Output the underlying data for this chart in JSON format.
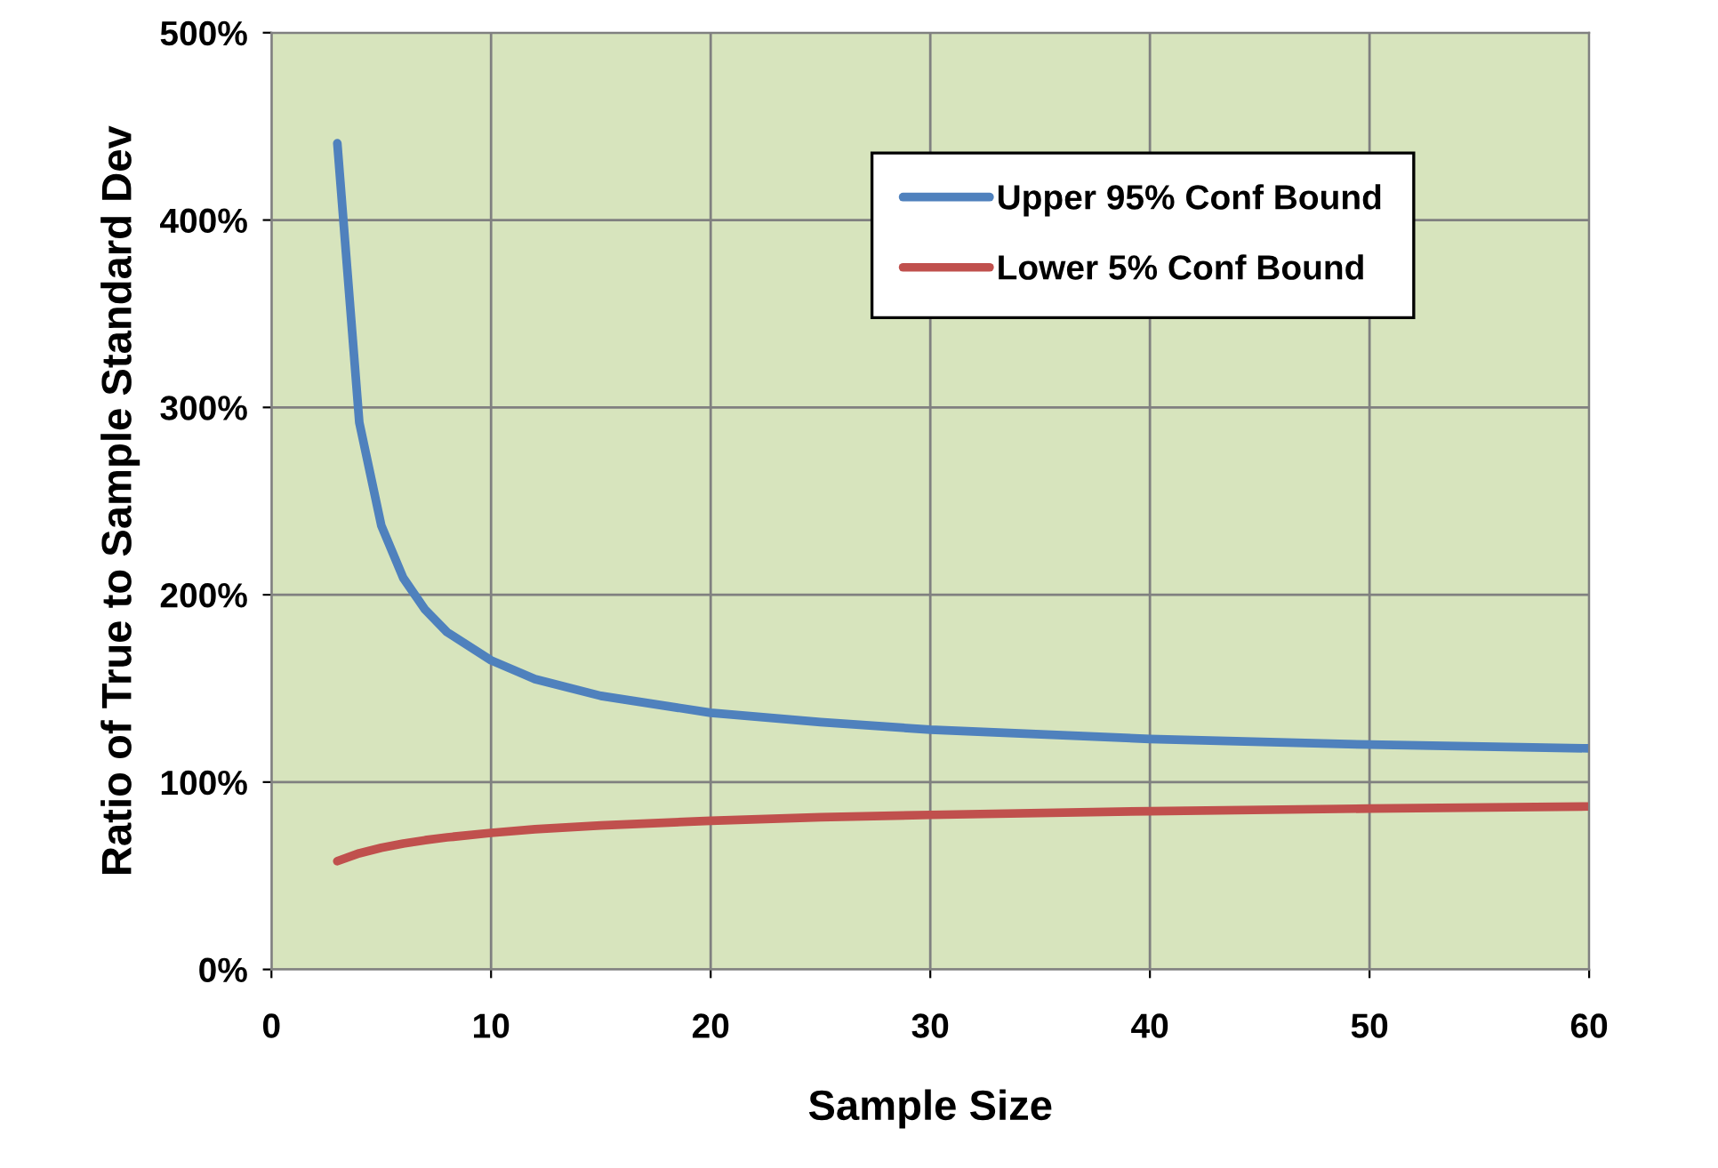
{
  "chart_data": {
    "type": "line",
    "xlabel": "Sample Size",
    "ylabel": "Ratio of True to Sample Standard Dev",
    "series": [
      {
        "name": "Upper 95% Conf Bound",
        "color": "#4f81bd",
        "x": [
          3,
          4,
          5,
          6,
          7,
          8,
          10,
          12,
          15,
          20,
          25,
          30,
          40,
          50,
          60
        ],
        "values": [
          441,
          292,
          237,
          209,
          192,
          180,
          165,
          155,
          146,
          137,
          132,
          128,
          123,
          120,
          118
        ]
      },
      {
        "name": "Lower 5% Conf Bound",
        "color": "#c0504d",
        "x": [
          3,
          4,
          5,
          6,
          7,
          8,
          10,
          12,
          15,
          20,
          25,
          30,
          40,
          50,
          60
        ],
        "values": [
          57.8,
          62.0,
          64.9,
          67.2,
          69.0,
          70.5,
          72.9,
          74.8,
          76.9,
          79.4,
          81.2,
          82.5,
          84.5,
          85.9,
          87.0
        ]
      }
    ],
    "xlim": [
      0,
      60
    ],
    "xticks": [
      0,
      10,
      20,
      30,
      40,
      50,
      60
    ],
    "ylim": [
      0,
      500
    ],
    "yticks": [
      {
        "value": 0,
        "label": "0%"
      },
      {
        "value": 100,
        "label": "100%"
      },
      {
        "value": 200,
        "label": "200%"
      },
      {
        "value": 300,
        "label": "300%"
      },
      {
        "value": 400,
        "label": "400%"
      },
      {
        "value": 500,
        "label": "500%"
      }
    ],
    "grid": true,
    "legend": "top right",
    "marker": "none",
    "line_style": "solid"
  }
}
